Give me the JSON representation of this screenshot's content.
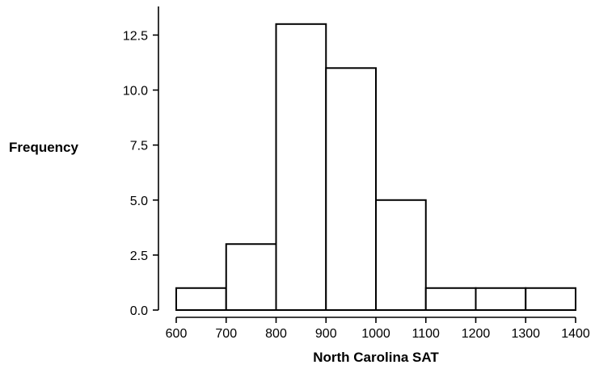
{
  "chart_data": {
    "type": "bar",
    "subtype": "histogram",
    "title": "",
    "xlabel": "North Carolina SAT",
    "ylabel": "Frequency",
    "bin_edges": [
      600,
      700,
      800,
      900,
      1000,
      1100,
      1200,
      1300,
      1400
    ],
    "values": [
      1,
      3,
      13,
      11,
      5,
      1,
      1,
      1
    ],
    "xlim": [
      600,
      1400
    ],
    "ylim": [
      0,
      13.8
    ],
    "x_ticks": [
      "600",
      "700",
      "800",
      "900",
      "1000",
      "1100",
      "1200",
      "1300",
      "1400"
    ],
    "y_ticks": [
      "0.0",
      "2.5",
      "5.0",
      "7.5",
      "10.0",
      "12.5"
    ],
    "grid": false,
    "colors": {
      "bar_fill": "#ffffff",
      "bar_stroke": "#000000"
    }
  }
}
